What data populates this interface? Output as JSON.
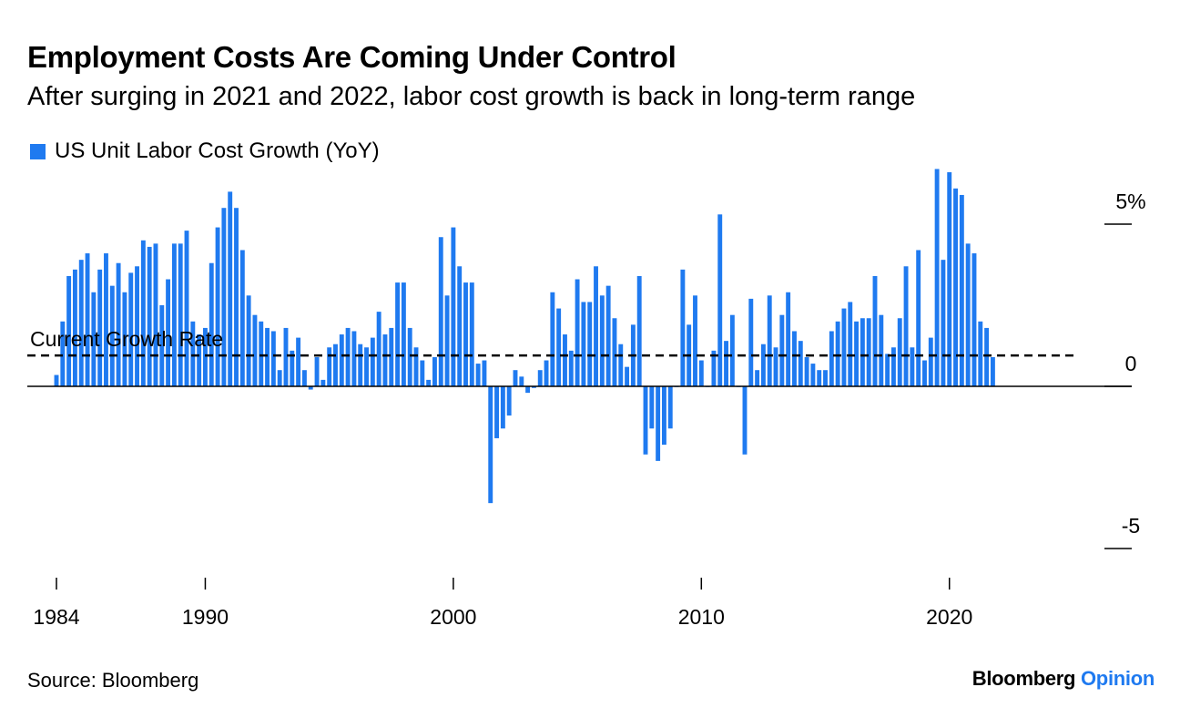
{
  "header": {
    "title": "Employment Costs Are Coming Under Control",
    "subtitle": "After surging in 2021 and 2022, labor cost growth is back in long-term range"
  },
  "footer": {
    "source": "Source: Bloomberg",
    "brand_main": "Bloomberg",
    "brand_accent": "Opinion"
  },
  "colors": {
    "bar": "#1f7af0",
    "brand_accent": "#1f7af0",
    "axis": "#000000"
  },
  "chart_data": {
    "type": "bar",
    "title": "Employment Costs Are Coming Under Control",
    "subtitle": "After surging in 2021 and 2022, labor cost growth is back in long-term range",
    "ylabel": "",
    "xlabel": "",
    "legend": {
      "placement": "top-left",
      "entries": [
        "US Unit Labor Cost Growth (YoY)"
      ]
    },
    "series": [
      {
        "name": "US Unit Labor Cost Growth (YoY)",
        "x_start": 1984.0,
        "x_step": 0.25,
        "values": [
          0.35,
          2.0,
          3.4,
          3.6,
          3.9,
          4.1,
          2.9,
          3.6,
          4.1,
          3.1,
          3.8,
          2.9,
          3.5,
          3.7,
          4.5,
          4.3,
          4.4,
          2.5,
          3.3,
          4.4,
          4.4,
          4.8,
          2.0,
          1.6,
          1.8,
          3.8,
          4.9,
          5.5,
          6.0,
          5.5,
          4.2,
          2.8,
          2.2,
          2.0,
          1.8,
          1.7,
          0.5,
          1.8,
          1.1,
          1.5,
          0.5,
          -0.1,
          0.9,
          0.2,
          1.2,
          1.3,
          1.6,
          1.8,
          1.7,
          1.3,
          1.2,
          1.5,
          2.3,
          1.6,
          1.8,
          3.2,
          3.2,
          1.8,
          1.2,
          0.8,
          0.2,
          0.9,
          4.6,
          2.8,
          4.9,
          3.7,
          3.2,
          3.2,
          0.7,
          0.8,
          -3.6,
          -1.6,
          -1.3,
          -0.9,
          0.5,
          0.3,
          -0.2,
          -0.05,
          0.5,
          0.8,
          2.9,
          2.4,
          1.6,
          1.1,
          3.3,
          2.6,
          2.6,
          3.7,
          2.8,
          3.1,
          2.1,
          1.3,
          0.6,
          1.9,
          3.4,
          -2.1,
          -1.3,
          -2.3,
          -1.8,
          -1.3,
          0.0,
          3.6,
          1.9,
          2.8,
          0.8,
          0.0,
          1.1,
          5.3,
          1.4,
          2.2,
          0.0,
          -2.1,
          2.7,
          0.5,
          1.3,
          2.8,
          1.2,
          2.2,
          2.9,
          1.7,
          1.4,
          0.9,
          0.7,
          0.5,
          0.5,
          1.7,
          2.0,
          2.4,
          2.6,
          2.0,
          2.1,
          2.1,
          3.4,
          2.2,
          1.0,
          1.2,
          2.1,
          3.7,
          1.2,
          4.2,
          0.8,
          1.5,
          6.7,
          3.9,
          6.6,
          6.1,
          5.9,
          4.4,
          4.1,
          2.0,
          1.8,
          0.9
        ]
      }
    ],
    "x_axis": {
      "type": "time",
      "range": [
        1984,
        2026.25
      ],
      "ticks": [
        1984,
        1990,
        2000,
        2010,
        2020
      ],
      "tick_labels": [
        "1984",
        "1990",
        "2000",
        "2010",
        "2020"
      ]
    },
    "y_axis": {
      "range": [
        -5.8,
        7.0
      ],
      "ticks": [
        5,
        0,
        -5
      ],
      "tick_labels": [
        "5%",
        "0",
        "-5"
      ],
      "position": "right"
    },
    "reference_line": {
      "label": "Current Growth Rate",
      "value": 0.95,
      "style": "dashed"
    },
    "grid": false
  }
}
